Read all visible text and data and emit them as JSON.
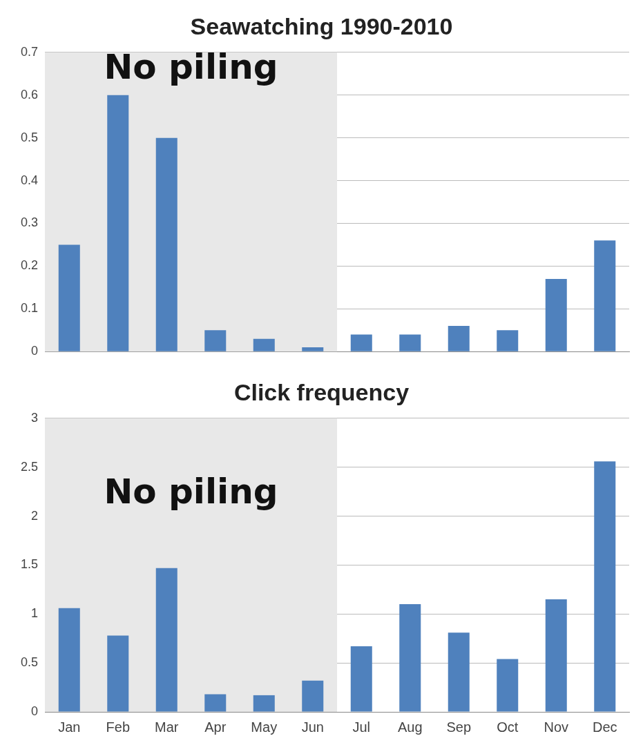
{
  "chart_data": [
    {
      "type": "bar",
      "title": "Seawatching 1990-2010",
      "categories": [
        "Jan",
        "Feb",
        "Mar",
        "Apr",
        "May",
        "Jun",
        "Jul",
        "Aug",
        "Sep",
        "Oct",
        "Nov",
        "Dec"
      ],
      "values": [
        0.25,
        0.6,
        0.5,
        0.05,
        0.03,
        0.01,
        0.04,
        0.04,
        0.06,
        0.05,
        0.17,
        0.26
      ],
      "color": "#4f81bd",
      "ylim": [
        0,
        0.7
      ],
      "yticks": [
        0,
        0.1,
        0.2,
        0.3,
        0.4,
        0.5,
        0.6,
        0.7
      ],
      "grid": "y",
      "tick_labels": "y",
      "bands": [
        {
          "axis": "x",
          "from": "Jan",
          "to": "Jun",
          "label": "No piling",
          "color": "#e8e8e8"
        }
      ]
    },
    {
      "type": "bar",
      "title": "Click frequency",
      "categories": [
        "Jan",
        "Feb",
        "Mar",
        "Apr",
        "May",
        "Jun",
        "Jul",
        "Aug",
        "Sep",
        "Oct",
        "Nov",
        "Dec"
      ],
      "values": [
        1.06,
        0.78,
        1.47,
        0.18,
        0.17,
        0.32,
        0.67,
        1.1,
        0.81,
        0.54,
        1.15,
        2.56
      ],
      "color": "#4f81bd",
      "ylim": [
        0,
        3
      ],
      "yticks": [
        0,
        0.5,
        1,
        1.5,
        2,
        2.5,
        3
      ],
      "grid": "y",
      "bands": [
        {
          "axis": "x",
          "from": "Jan",
          "to": "Jun",
          "label": "No piling",
          "color": "#e8e8e8"
        }
      ]
    }
  ]
}
